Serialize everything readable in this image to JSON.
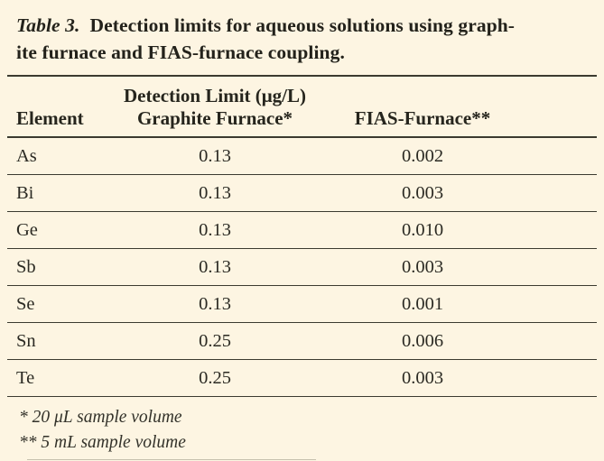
{
  "caption": {
    "label": "Table 3.",
    "line1": "Detection limits for aqueous solutions using graph-",
    "line2": "ite furnace and FIAS-furnace coupling."
  },
  "table": {
    "span_header": "Detection Limit (μg/L)",
    "columns": {
      "element": "Element",
      "graphite": "Graphite Furnace*",
      "fias": "FIAS-Furnace**"
    },
    "rows": [
      {
        "element": "As",
        "graphite": "0.13",
        "fias": "0.002"
      },
      {
        "element": "Bi",
        "graphite": "0.13",
        "fias": "0.003"
      },
      {
        "element": "Ge",
        "graphite": "0.13",
        "fias": "0.010"
      },
      {
        "element": "Sb",
        "graphite": "0.13",
        "fias": "0.003"
      },
      {
        "element": "Se",
        "graphite": "0.13",
        "fias": "0.001"
      },
      {
        "element": "Sn",
        "graphite": "0.25",
        "fias": "0.006"
      },
      {
        "element": "Te",
        "graphite": "0.25",
        "fias": "0.003"
      }
    ]
  },
  "footnotes": [
    "* 20 μL sample volume",
    "** 5 mL sample volume"
  ],
  "colors": {
    "background": "#fdf5e2",
    "rule": "#3b3a2f",
    "text": "#2b2a23"
  }
}
